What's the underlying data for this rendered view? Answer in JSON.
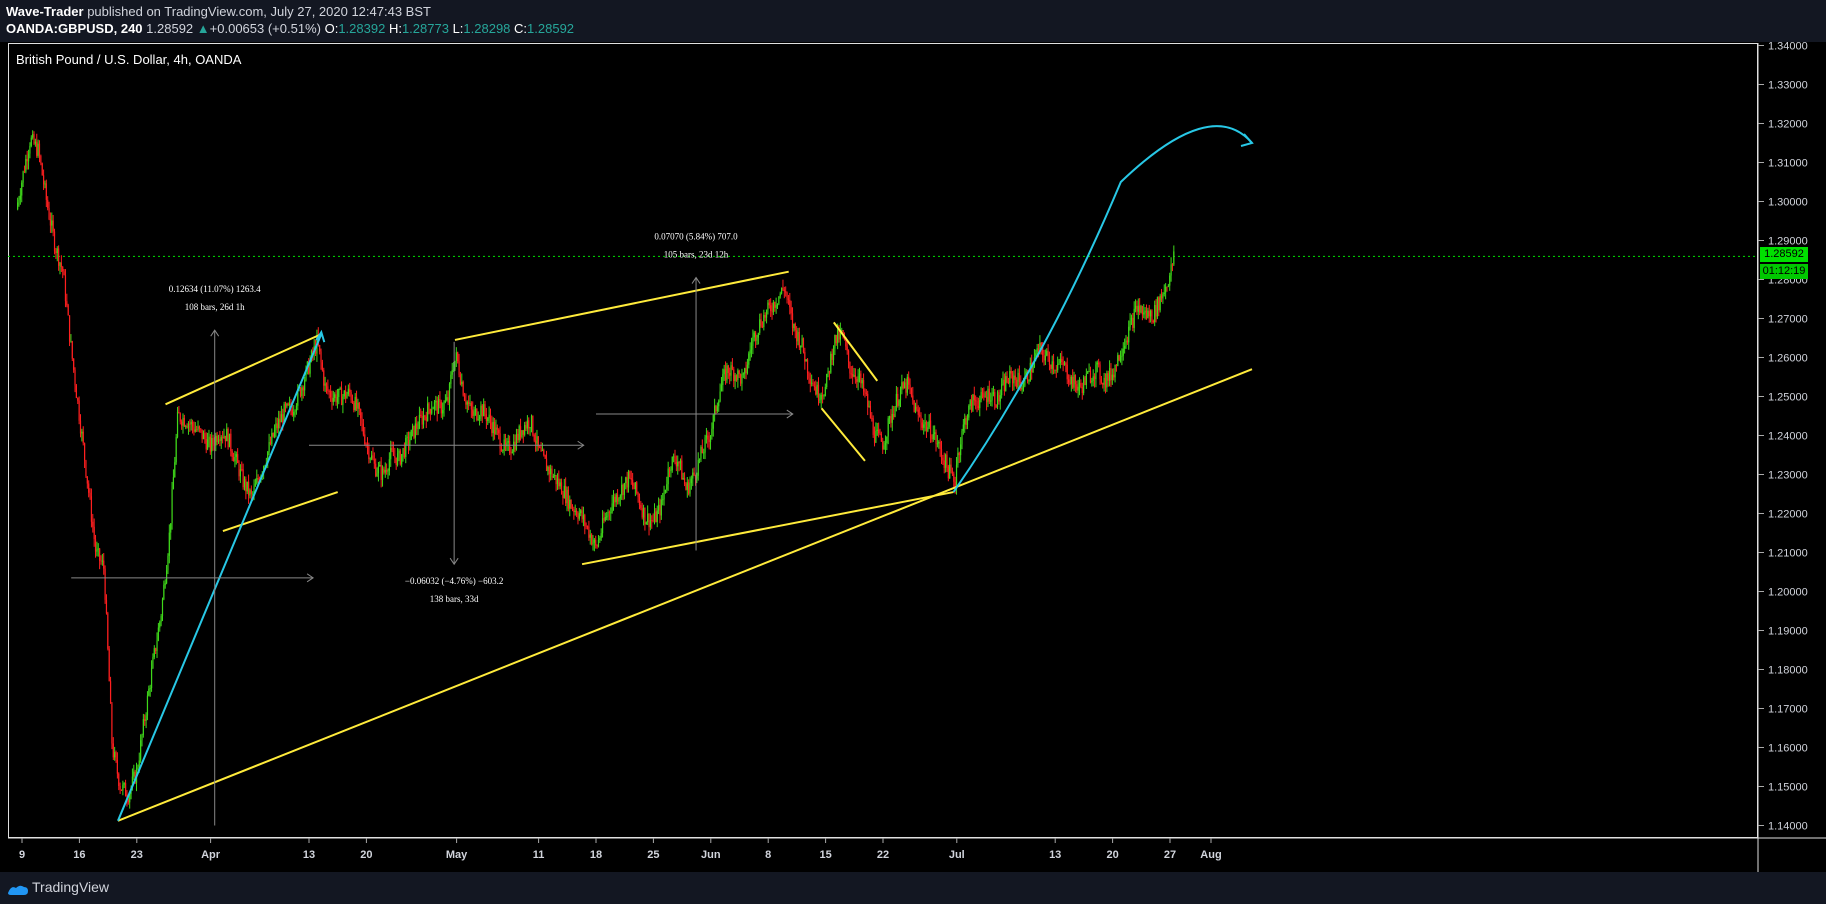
{
  "header": {
    "author": "Wave-Trader",
    "published_text": "published on TradingView.com, July 27, 2020 12:47:43 BST",
    "symbol": "OANDA:GBPUSD, 240",
    "last": "1.28592",
    "change": "+0.00653 (+0.51%)",
    "change_arrow": "▲",
    "o_label": "O:",
    "o": "1.28392",
    "h_label": "H:",
    "h": "1.28773",
    "l_label": "L:",
    "l": "1.28298",
    "c_label": "C:",
    "c": "1.28592"
  },
  "chart_title": "British Pound / U.S. Dollar, 4h, OANDA",
  "price_tag": {
    "price": "1.28592",
    "countdown": "01:12:19"
  },
  "footer": {
    "brand": "TradingView"
  },
  "colors": {
    "up": "#3fd81a",
    "down": "#ff1f1f",
    "trendline": "#ffeb3b",
    "projection": "#28c8e6",
    "last_price": "#00e000"
  },
  "chart_data": {
    "type": "candlestick",
    "ylim": [
      1.1365,
      1.3415
    ],
    "y_ticks": [
      "1.34000",
      "1.33000",
      "1.32000",
      "1.31000",
      "1.30000",
      "1.29000",
      "1.28000",
      "1.27000",
      "1.26000",
      "1.25000",
      "1.24000",
      "1.23000",
      "1.22000",
      "1.21000",
      "1.20000",
      "1.19000",
      "1.18000",
      "1.17000",
      "1.16000",
      "1.15000",
      "1.14000"
    ],
    "x_ticks": [
      {
        "label": "9",
        "d": 0
      },
      {
        "label": "16",
        "d": 7
      },
      {
        "label": "23",
        "d": 14
      },
      {
        "label": "Apr",
        "d": 23
      },
      {
        "label": "13",
        "d": 35
      },
      {
        "label": "20",
        "d": 42
      },
      {
        "label": "May",
        "d": 53
      },
      {
        "label": "11",
        "d": 63
      },
      {
        "label": "18",
        "d": 70
      },
      {
        "label": "25",
        "d": 77
      },
      {
        "label": "Jun",
        "d": 84
      },
      {
        "label": "8",
        "d": 91
      },
      {
        "label": "15",
        "d": 98
      },
      {
        "label": "22",
        "d": 105
      },
      {
        "label": "Jul",
        "d": 114
      },
      {
        "label": "13",
        "d": 126
      },
      {
        "label": "20",
        "d": 133
      },
      {
        "label": "27",
        "d": 140
      },
      {
        "label": "Aug",
        "d": 145
      }
    ],
    "price_path": [
      [
        -0.7,
        1.298
      ],
      [
        0.5,
        1.311
      ],
      [
        1,
        1.316
      ],
      [
        2,
        1.313
      ],
      [
        3,
        1.3
      ],
      [
        4,
        1.289
      ],
      [
        5,
        1.282
      ],
      [
        6,
        1.262
      ],
      [
        7,
        1.245
      ],
      [
        8,
        1.228
      ],
      [
        9,
        1.21
      ],
      [
        10,
        1.206
      ],
      [
        11,
        1.16
      ],
      [
        12,
        1.15
      ],
      [
        13,
        1.148
      ],
      [
        14,
        1.154
      ],
      [
        15,
        1.168
      ],
      [
        16,
        1.182
      ],
      [
        17,
        1.195
      ],
      [
        18,
        1.215
      ],
      [
        19,
        1.245
      ],
      [
        20,
        1.244
      ],
      [
        21,
        1.242
      ],
      [
        22,
        1.24
      ],
      [
        23,
        1.237
      ],
      [
        24,
        1.241
      ],
      [
        25,
        1.24
      ],
      [
        26,
        1.234
      ],
      [
        27,
        1.228
      ],
      [
        28,
        1.224
      ],
      [
        29,
        1.23
      ],
      [
        30,
        1.236
      ],
      [
        31,
        1.242
      ],
      [
        32,
        1.246
      ],
      [
        33,
        1.247
      ],
      [
        34,
        1.252
      ],
      [
        35,
        1.258
      ],
      [
        36,
        1.264
      ],
      [
        37,
        1.252
      ],
      [
        38,
        1.25
      ],
      [
        39,
        1.25
      ],
      [
        40,
        1.251
      ],
      [
        41,
        1.246
      ],
      [
        42,
        1.238
      ],
      [
        43,
        1.232
      ],
      [
        44,
        1.23
      ],
      [
        45,
        1.235
      ],
      [
        46,
        1.234
      ],
      [
        47,
        1.238
      ],
      [
        48,
        1.242
      ],
      [
        49,
        1.245
      ],
      [
        50,
        1.248
      ],
      [
        51,
        1.247
      ],
      [
        52,
        1.249
      ],
      [
        52.5,
        1.258
      ],
      [
        53,
        1.26
      ],
      [
        54,
        1.25
      ],
      [
        55,
        1.245
      ],
      [
        56,
        1.247
      ],
      [
        57,
        1.244
      ],
      [
        58,
        1.24
      ],
      [
        59,
        1.236
      ],
      [
        60,
        1.238
      ],
      [
        61,
        1.242
      ],
      [
        62,
        1.244
      ],
      [
        63,
        1.236
      ],
      [
        64,
        1.232
      ],
      [
        65,
        1.229
      ],
      [
        66,
        1.226
      ],
      [
        67,
        1.222
      ],
      [
        68,
        1.22
      ],
      [
        69,
        1.216
      ],
      [
        70,
        1.211
      ],
      [
        71,
        1.218
      ],
      [
        72,
        1.223
      ],
      [
        73,
        1.226
      ],
      [
        74,
        1.229
      ],
      [
        75,
        1.225
      ],
      [
        76,
        1.219
      ],
      [
        77,
        1.218
      ],
      [
        78,
        1.222
      ],
      [
        79,
        1.233
      ],
      [
        80,
        1.234
      ],
      [
        81,
        1.226
      ],
      [
        82,
        1.23
      ],
      [
        83,
        1.236
      ],
      [
        84,
        1.241
      ],
      [
        85,
        1.251
      ],
      [
        86,
        1.257
      ],
      [
        87,
        1.256
      ],
      [
        88,
        1.254
      ],
      [
        89,
        1.264
      ],
      [
        90,
        1.269
      ],
      [
        91,
        1.272
      ],
      [
        92,
        1.275
      ],
      [
        93,
        1.278
      ],
      [
        94,
        1.268
      ],
      [
        95,
        1.264
      ],
      [
        96,
        1.256
      ],
      [
        97,
        1.251
      ],
      [
        98,
        1.252
      ],
      [
        99,
        1.264
      ],
      [
        100,
        1.266
      ],
      [
        101,
        1.257
      ],
      [
        102,
        1.255
      ],
      [
        103,
        1.249
      ],
      [
        104,
        1.24
      ],
      [
        105,
        1.238
      ],
      [
        106,
        1.245
      ],
      [
        107,
        1.251
      ],
      [
        108,
        1.253
      ],
      [
        109,
        1.246
      ],
      [
        110,
        1.243
      ],
      [
        111,
        1.241
      ],
      [
        112,
        1.236
      ],
      [
        113,
        1.231
      ],
      [
        113.8,
        1.228
      ],
      [
        114,
        1.234
      ],
      [
        115,
        1.244
      ],
      [
        116,
        1.249
      ],
      [
        117,
        1.249
      ],
      [
        118,
        1.251
      ],
      [
        119,
        1.249
      ],
      [
        120,
        1.254
      ],
      [
        121,
        1.255
      ],
      [
        122,
        1.253
      ],
      [
        123,
        1.257
      ],
      [
        124,
        1.262
      ],
      [
        125,
        1.26
      ],
      [
        126,
        1.258
      ],
      [
        127,
        1.258
      ],
      [
        128,
        1.254
      ],
      [
        129,
        1.252
      ],
      [
        130,
        1.255
      ],
      [
        131,
        1.257
      ],
      [
        132,
        1.254
      ],
      [
        133,
        1.256
      ],
      [
        134,
        1.262
      ],
      [
        135,
        1.267
      ],
      [
        136,
        1.273
      ],
      [
        137,
        1.271
      ],
      [
        138,
        1.271
      ],
      [
        139,
        1.276
      ],
      [
        140,
        1.281
      ],
      [
        140.5,
        1.28592
      ]
    ],
    "trendlines": [
      {
        "from": [
          11.7,
          1.1412
        ],
        "to": [
          150,
          1.257
        ]
      },
      {
        "from": [
          17.5,
          1.248
        ],
        "to": [
          36.5,
          1.266
        ]
      },
      {
        "from": [
          24.5,
          1.2155
        ],
        "to": [
          38.5,
          1.2255
        ]
      },
      {
        "from": [
          52.8,
          1.2645
        ],
        "to": [
          93.5,
          1.282
        ]
      },
      {
        "from": [
          68.3,
          1.207
        ],
        "to": [
          113.6,
          1.2255
        ]
      },
      {
        "from": [
          99,
          1.269
        ],
        "to": [
          104.3,
          1.254
        ]
      },
      {
        "from": [
          97.5,
          1.247
        ],
        "to": [
          102.8,
          1.2335
        ]
      }
    ],
    "projection": {
      "points": [
        [
          11.7,
          1.1412
        ],
        [
          36.5,
          1.266
        ]
      ],
      "curve": [
        [
          113.6,
          1.2255
        ],
        [
          125,
          1.26
        ],
        [
          134,
          1.305
        ],
        [
          145,
          1.32
        ],
        [
          150,
          1.315
        ]
      ]
    },
    "measures": [
      {
        "label1": "0.12634 (11.07%) 1263.4",
        "label2": "108 bars, 26d 1h",
        "x": 23.5,
        "y_top": 1.267,
        "y_bot": 1.14,
        "h_from": 6,
        "h_to": 35.5,
        "h_y": 1.2035,
        "up": true
      },
      {
        "label1": "−0.06032 (−4.76%) −603.2",
        "label2": "138 bars, 33d",
        "x": 52.7,
        "y_top": 1.264,
        "y_bot": 1.207,
        "h_from": 35,
        "h_to": 68.5,
        "h_y": 1.2375,
        "up": false
      },
      {
        "label1": "0.07070 (5.84%) 707.0",
        "label2": "105 bars, 23d 12h",
        "x": 82.2,
        "y_top": 1.2805,
        "y_bot": 1.2105,
        "h_from": 70,
        "h_to": 94,
        "h_y": 1.2455,
        "up": true
      }
    ],
    "last_price": 1.28592,
    "grid": false,
    "legend": "none"
  }
}
